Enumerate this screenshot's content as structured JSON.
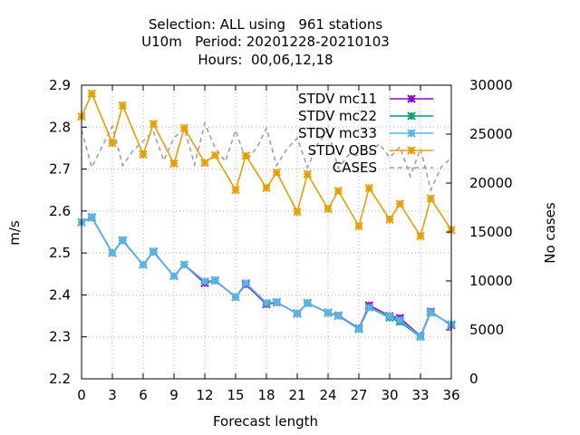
{
  "chart_data": {
    "type": "line",
    "title_lines": [
      "Selection: ALL using   961 stations",
      "U10m   Period: 20201228-20210103",
      "Hours:  00,06,12,18"
    ],
    "xlabel": "Forecast length",
    "ylabel": "m/s",
    "y2label": "No cases",
    "xlim": [
      0,
      36
    ],
    "ylim": [
      2.2,
      2.9
    ],
    "y2lim": [
      0,
      30000
    ],
    "xticks": [
      "0",
      "3",
      "6",
      "9",
      "12",
      "15",
      "18",
      "21",
      "24",
      "27",
      "30",
      "33",
      "36"
    ],
    "yticks": [
      "2.2",
      "2.3",
      "2.4",
      "2.5",
      "2.6",
      "2.7",
      "2.8",
      "2.9"
    ],
    "y2ticks": [
      "0",
      "5000",
      "10000",
      "15000",
      "20000",
      "25000",
      "30000"
    ],
    "grid": true,
    "legend_position": "top-right",
    "x": [
      0,
      1,
      3,
      4,
      6,
      7,
      9,
      10,
      12,
      13,
      15,
      16,
      18,
      19,
      21,
      22,
      24,
      25,
      27,
      28,
      30,
      31,
      33,
      34,
      36
    ],
    "series": [
      {
        "name": "STDV mc11",
        "axis": "y",
        "color": "#9400d3",
        "marker": "x",
        "values": [
          2.573,
          2.585,
          2.5,
          2.53,
          2.472,
          2.503,
          2.445,
          2.472,
          2.428,
          2.435,
          2.395,
          2.425,
          2.378,
          2.382,
          2.356,
          2.38,
          2.358,
          2.351,
          2.32,
          2.375,
          2.35,
          2.345,
          2.302,
          2.36,
          2.328
        ]
      },
      {
        "name": "STDV mc22",
        "axis": "y",
        "color": "#009e73",
        "marker": "x",
        "values": [
          2.573,
          2.585,
          2.5,
          2.53,
          2.472,
          2.503,
          2.445,
          2.472,
          2.432,
          2.434,
          2.395,
          2.428,
          2.38,
          2.383,
          2.355,
          2.381,
          2.357,
          2.35,
          2.319,
          2.37,
          2.346,
          2.336,
          2.3,
          2.358,
          2.33
        ]
      },
      {
        "name": "STDV mc33",
        "axis": "y",
        "color": "#56b4e9",
        "marker": "x",
        "values": [
          2.573,
          2.586,
          2.5,
          2.531,
          2.472,
          2.504,
          2.445,
          2.472,
          2.432,
          2.435,
          2.395,
          2.428,
          2.381,
          2.383,
          2.355,
          2.38,
          2.358,
          2.35,
          2.318,
          2.37,
          2.349,
          2.34,
          2.301,
          2.358,
          2.33
        ]
      },
      {
        "name": "STDV OBS",
        "axis": "y",
        "color": "#e69f00",
        "marker": "x",
        "values": [
          2.825,
          2.88,
          2.762,
          2.852,
          2.735,
          2.808,
          2.713,
          2.798,
          2.715,
          2.733,
          2.65,
          2.732,
          2.655,
          2.692,
          2.598,
          2.688,
          2.605,
          2.648,
          2.564,
          2.655,
          2.58,
          2.617,
          2.54,
          2.63,
          2.555
        ]
      },
      {
        "name": "CASES",
        "axis": "y2",
        "color": "#a0a0a0",
        "dashed": true,
        "marker": "none",
        "x": [
          0,
          1,
          2,
          3,
          4,
          5,
          6,
          7,
          8,
          9,
          10,
          11,
          12,
          13,
          14,
          15,
          16,
          17,
          18,
          19,
          20,
          21,
          22,
          23,
          24,
          25,
          26,
          27,
          28,
          29,
          30,
          31,
          32,
          33,
          34,
          35,
          36
        ],
        "values": [
          25400,
          21600,
          23700,
          25800,
          21800,
          23300,
          24300,
          25300,
          22300,
          24600,
          25600,
          21900,
          26100,
          23600,
          22200,
          25400,
          22300,
          23500,
          25600,
          21800,
          23500,
          24600,
          21600,
          24000,
          25400,
          21500,
          22900,
          22800,
          23100,
          24000,
          22600,
          23700,
          20700,
          23500,
          19300,
          21600,
          22600
        ]
      }
    ]
  }
}
